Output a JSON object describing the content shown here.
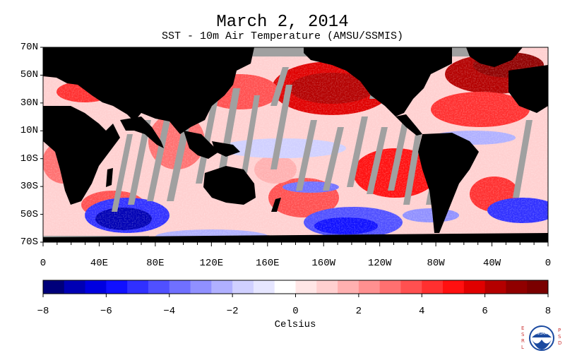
{
  "title": "March 2, 2014",
  "subtitle": "SST - 10m Air Temperature (AMSU/SSMIS)",
  "lat_labels": [
    "70N",
    "50N",
    "30N",
    "10N",
    "10S",
    "30S",
    "50S",
    "70S"
  ],
  "lon_labels": [
    "0",
    "40E",
    "80E",
    "120E",
    "160E",
    "160W",
    "120W",
    "80W",
    "40W",
    "0"
  ],
  "colorbar": {
    "label": "Celsius",
    "ticks": [
      "-8",
      "-6",
      "-4",
      "-2",
      "0",
      "2",
      "4",
      "6",
      "8"
    ],
    "range": [
      -8,
      8
    ],
    "colors": [
      "#00007a",
      "#0000b4",
      "#0000e0",
      "#1010ff",
      "#3030ff",
      "#5050ff",
      "#7070ff",
      "#9090ff",
      "#b0b0ff",
      "#d0d0ff",
      "#e6e6ff",
      "#ffffff",
      "#ffe6e6",
      "#ffd0d0",
      "#ffb0b0",
      "#ff9090",
      "#ff7070",
      "#ff5050",
      "#ff3030",
      "#ff1010",
      "#e00000",
      "#b40000",
      "#900000",
      "#7a0000"
    ]
  },
  "colors": {
    "land": "#000000",
    "no_data": "#a0a0a0"
  },
  "logo": {
    "left_text": "ESRL",
    "right_text": "PSD",
    "center_text": "NOAA"
  }
}
